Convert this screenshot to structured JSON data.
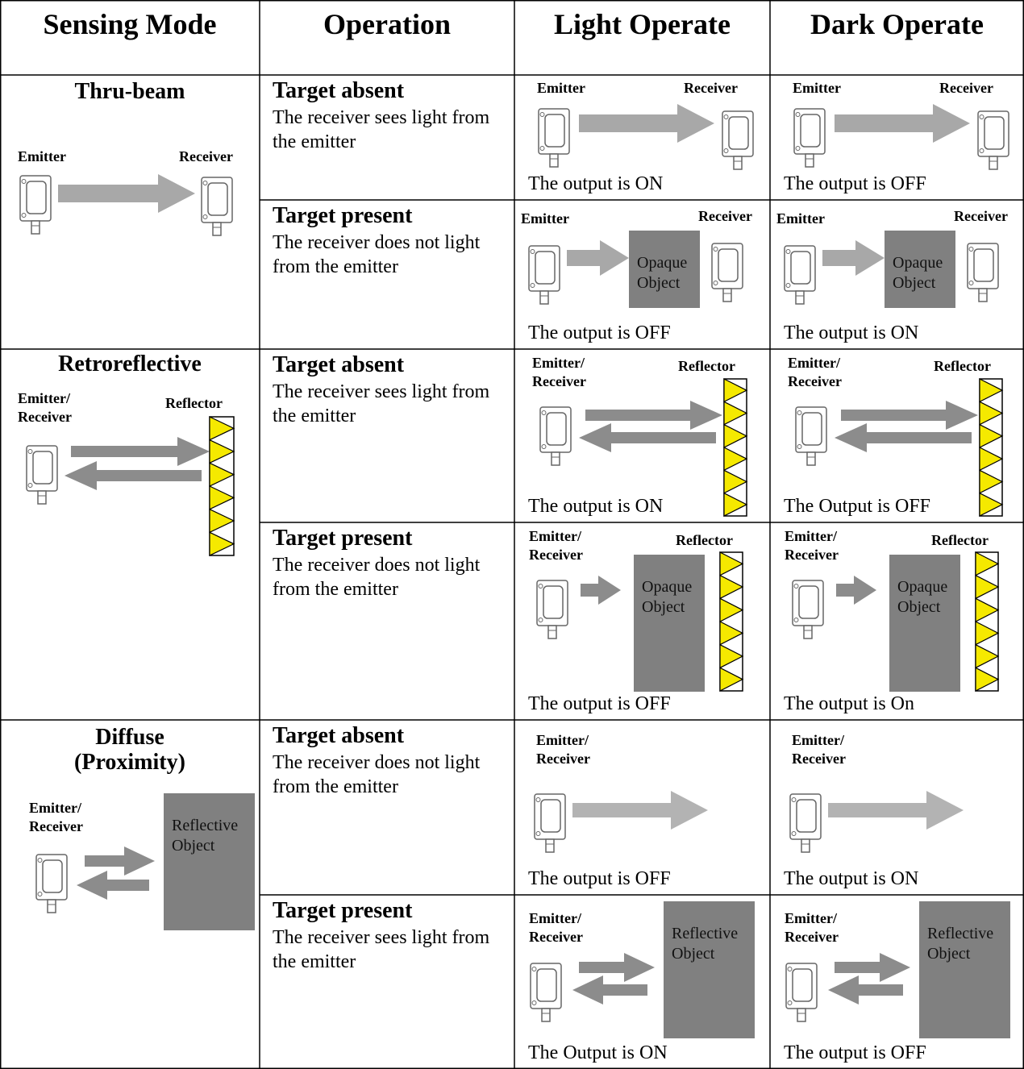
{
  "header": {
    "columns": [
      "Sensing Mode",
      "Operation",
      "Light Operate",
      "Dark Operate"
    ]
  },
  "modes": [
    {
      "name": "Thru-beam",
      "emitter_label": "Emitter",
      "receiver_label": "Receiver",
      "cases": [
        {
          "operation": "Target absent",
          "description": "The receiver sees light from the emitter",
          "light_operate": {
            "emitter_label": "Emitter",
            "receiver_label": "Receiver",
            "output": "The output is ON"
          },
          "dark_operate": {
            "emitter_label": "Emitter",
            "receiver_label": "Receiver",
            "output": "The output is OFF"
          }
        },
        {
          "operation": "Target present",
          "description": "The receiver does not light from the emitter",
          "light_operate": {
            "emitter_label": "Emitter",
            "receiver_label": "Receiver",
            "object_label": "Opaque Object",
            "output": "The output is OFF"
          },
          "dark_operate": {
            "emitter_label": "Emitter",
            "receiver_label": "Receiver",
            "object_label": "Opaque Object",
            "output": "The output is ON"
          }
        }
      ]
    },
    {
      "name": "Retroreflective",
      "emitter_label": "Emitter/ Receiver",
      "reflector_label": "Reflector",
      "cases": [
        {
          "operation": "Target absent",
          "description": "The receiver sees light from the emitter",
          "light_operate": {
            "emitter_label": "Emitter/ Receiver",
            "reflector_label": "Reflector",
            "output": "The output is ON"
          },
          "dark_operate": {
            "emitter_label": "Emitter/ Receiver",
            "reflector_label": "Reflector",
            "output": "The Output is OFF"
          }
        },
        {
          "operation": "Target present",
          "description": "The receiver does not light from the emitter",
          "light_operate": {
            "emitter_label": "Emitter/ Receiver",
            "reflector_label": "Reflector",
            "object_label": "Opaque Object",
            "output": "The output is OFF"
          },
          "dark_operate": {
            "emitter_label": "Emitter/ Receiver",
            "reflector_label": "Reflector",
            "object_label": "Opaque Object",
            "output": "The output is On"
          }
        }
      ]
    },
    {
      "name": "Diffuse (Proximity)",
      "emitter_label": "Emitter/ Receiver",
      "object_label": "Reflective Object",
      "cases": [
        {
          "operation": "Target absent",
          "description": "The receiver does not light from the emitter",
          "light_operate": {
            "emitter_label": "Emitter/ Receiver",
            "output": "The output is OFF"
          },
          "dark_operate": {
            "emitter_label": "Emitter/ Receiver",
            "output": "The output is ON"
          }
        },
        {
          "operation": "Target present",
          "description": "The receiver sees light from the emitter",
          "light_operate": {
            "emitter_label": "Emitter/ Receiver",
            "object_label": "Reflective Object",
            "output": "The Output is ON"
          },
          "dark_operate": {
            "emitter_label": "Emitter/ Receiver",
            "object_label": "Reflective Object",
            "output": "The output is OFF"
          }
        }
      ]
    }
  ]
}
